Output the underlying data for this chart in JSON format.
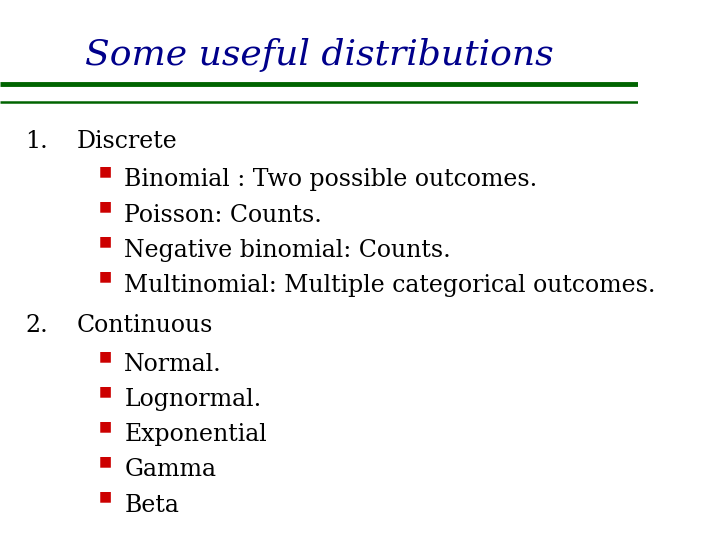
{
  "title": "Some useful distributions",
  "title_color": "#00008B",
  "title_fontsize": 26,
  "title_fontstyle": "italic",
  "bg_color": "#FFFFFF",
  "line1_color": "#006400",
  "line2_color": "#FFFFFF",
  "line3_color": "#006400",
  "bullet_color": "#CC0000",
  "text_color": "#000000",
  "section_fontsize": 17,
  "bullet_fontsize": 17,
  "sections": [
    {
      "number": "1.",
      "label": "Discrete",
      "bullets": [
        "Binomial : Two possible outcomes.",
        "Poisson: Counts.",
        "Negative binomial: Counts.",
        "Multinomial: Multiple categorical outcomes."
      ]
    },
    {
      "number": "2.",
      "label": "Continuous",
      "bullets": [
        "Normal.",
        "Lognormal.",
        "Exponential",
        "Gamma",
        "Beta"
      ]
    }
  ]
}
